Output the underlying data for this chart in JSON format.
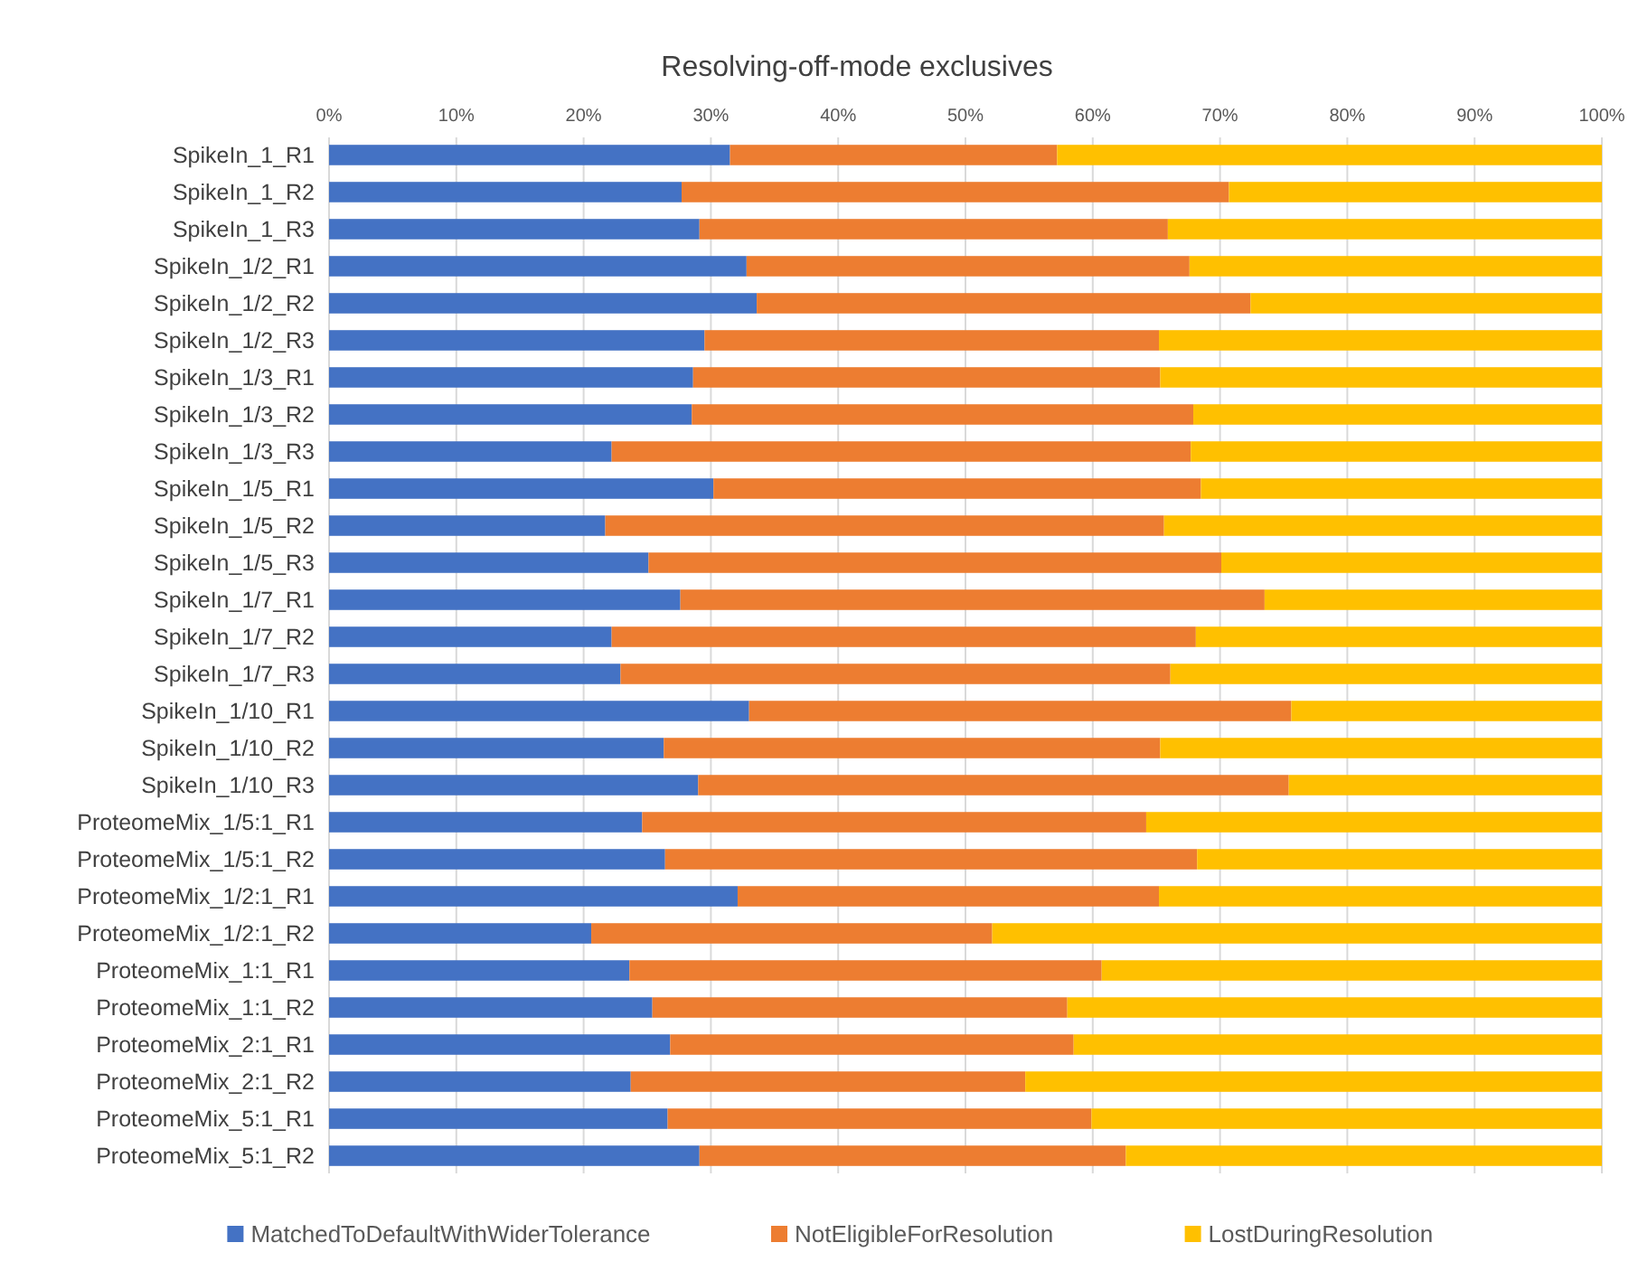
{
  "chart_data": {
    "type": "bar",
    "orientation": "horizontal",
    "stacked": true,
    "title": "Resolving-off-mode exclusives",
    "categories": [
      "SpikeIn_1_R1",
      "SpikeIn_1_R2",
      "SpikeIn_1_R3",
      "SpikeIn_1/2_R1",
      "SpikeIn_1/2_R2",
      "SpikeIn_1/2_R3",
      "SpikeIn_1/3_R1",
      "SpikeIn_1/3_R2",
      "SpikeIn_1/3_R3",
      "SpikeIn_1/5_R1",
      "SpikeIn_1/5_R2",
      "SpikeIn_1/5_R3",
      "SpikeIn_1/7_R1",
      "SpikeIn_1/7_R2",
      "SpikeIn_1/7_R3",
      "SpikeIn_1/10_R1",
      "SpikeIn_1/10_R2",
      "SpikeIn_1/10_R3",
      "ProteomeMix_1/5:1_R1",
      "ProteomeMix_1/5:1_R2",
      "ProteomeMix_1/2:1_R1",
      "ProteomeMix_1/2:1_R2",
      "ProteomeMix_1:1_R1",
      "ProteomeMix_1:1_R2",
      "ProteomeMix_2:1_R1",
      "ProteomeMix_2:1_R2",
      "ProteomeMix_5:1_R1",
      "ProteomeMix_5:1_R2"
    ],
    "series": [
      {
        "name": "MatchedToDefaultWithWiderTolerance",
        "color": "#4472c4",
        "values": [
          31.5,
          27.7,
          29.1,
          32.8,
          33.6,
          29.5,
          28.6,
          28.5,
          22.2,
          30.2,
          21.7,
          25.1,
          27.6,
          22.2,
          22.9,
          33.0,
          26.3,
          29.0,
          24.6,
          26.4,
          32.1,
          20.6,
          23.6,
          25.4,
          26.8,
          23.7,
          26.6,
          29.1
        ]
      },
      {
        "name": "NotEligibleForResolution",
        "color": "#ed7d31",
        "values": [
          25.7,
          43.0,
          36.8,
          34.8,
          38.8,
          35.7,
          36.7,
          39.4,
          45.5,
          38.3,
          43.9,
          45.0,
          45.9,
          45.9,
          43.2,
          42.6,
          39.0,
          46.4,
          39.6,
          41.8,
          33.1,
          31.5,
          37.1,
          32.6,
          31.7,
          31.0,
          33.3,
          33.5
        ]
      },
      {
        "name": "LostDuringResolution",
        "color": "#ffc000",
        "values": [
          42.8,
          29.3,
          34.1,
          32.4,
          27.6,
          34.8,
          34.7,
          32.1,
          32.3,
          31.5,
          34.4,
          29.9,
          26.5,
          31.9,
          33.9,
          24.4,
          34.7,
          24.6,
          35.8,
          31.8,
          34.8,
          47.9,
          39.3,
          42.0,
          41.5,
          45.3,
          40.1,
          37.4
        ]
      }
    ],
    "xlim": [
      0,
      100
    ],
    "xticks": [
      {
        "value": 0,
        "label": "0%"
      },
      {
        "value": 10,
        "label": "10%"
      },
      {
        "value": 20,
        "label": "20%"
      },
      {
        "value": 30,
        "label": "30%"
      },
      {
        "value": 40,
        "label": "40%"
      },
      {
        "value": 50,
        "label": "50%"
      },
      {
        "value": 60,
        "label": "60%"
      },
      {
        "value": 70,
        "label": "70%"
      },
      {
        "value": 80,
        "label": "80%"
      },
      {
        "value": 90,
        "label": "90%"
      },
      {
        "value": 100,
        "label": "100%"
      }
    ],
    "grid": "x",
    "legend": "bottom"
  }
}
